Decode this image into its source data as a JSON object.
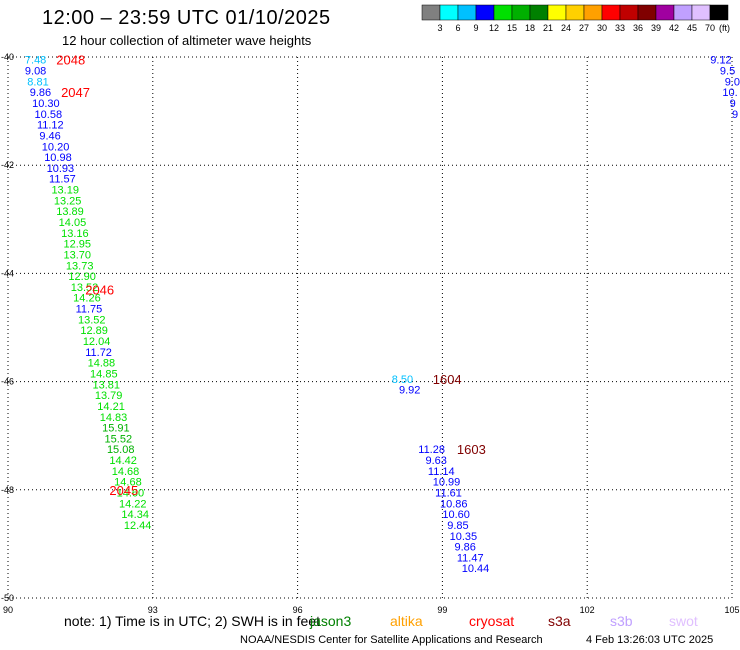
{
  "header": {
    "title": "12:00 – 23:59 UTC 01/10/2025",
    "subtitle": "12 hour collection of altimeter wave heights"
  },
  "legend": {
    "colors": [
      "#808080",
      "#00ffff",
      "#00c0ff",
      "#0000ff",
      "#00e000",
      "#00b000",
      "#008000",
      "#ffff00",
      "#ffd000",
      "#ffa000",
      "#ff0000",
      "#c00000",
      "#800000",
      "#a000a0",
      "#c0a0ff",
      "#e0c0ff",
      "#000000"
    ],
    "labels": [
      "3",
      "6",
      "9",
      "12",
      "15",
      "18",
      "21",
      "24",
      "27",
      "30",
      "33",
      "36",
      "39",
      "42",
      "45",
      "70"
    ],
    "unit": "(ft)"
  },
  "axes": {
    "lon_ticks": [
      "90",
      "93",
      "96",
      "99",
      "102",
      "105"
    ],
    "lat_ticks": [
      "-40",
      "-42",
      "-44",
      "-46",
      "-48",
      "-50"
    ]
  },
  "track_labels": [
    {
      "text": "2048",
      "lon": 91.0,
      "lat": -40.05,
      "color": "#ff0000"
    },
    {
      "text": "2047",
      "lon": 91.1,
      "lat": -40.65,
      "color": "#ff0000"
    },
    {
      "text": "2046",
      "lon": 91.6,
      "lat": -44.3,
      "color": "#ff0000"
    },
    {
      "text": "2045",
      "lon": 92.1,
      "lat": -48.0,
      "color": "#ff0000"
    },
    {
      "text": "1604",
      "lon": 98.8,
      "lat": -45.95,
      "color": "#800000"
    },
    {
      "text": "1603",
      "lon": 99.3,
      "lat": -47.25,
      "color": "#800000"
    }
  ],
  "observations": [
    {
      "text": "7.48",
      "lon": 90.35,
      "lat": -40.05,
      "color": "#00c0ff"
    },
    {
      "text": "9.08",
      "lon": 90.35,
      "lat": -40.25,
      "color": "#0000ff"
    },
    {
      "text": "8.81",
      "lon": 90.4,
      "lat": -40.45,
      "color": "#00c0ff"
    },
    {
      "text": "9.86",
      "lon": 90.45,
      "lat": -40.65,
      "color": "#0000ff"
    },
    {
      "text": "10.30",
      "lon": 90.5,
      "lat": -40.85,
      "color": "#0000ff"
    },
    {
      "text": "10.58",
      "lon": 90.55,
      "lat": -41.05,
      "color": "#0000ff"
    },
    {
      "text": "11.12",
      "lon": 90.6,
      "lat": -41.25,
      "color": "#0000ff"
    },
    {
      "text": "9.46",
      "lon": 90.65,
      "lat": -41.45,
      "color": "#0000ff"
    },
    {
      "text": "10.20",
      "lon": 90.7,
      "lat": -41.65,
      "color": "#0000ff"
    },
    {
      "text": "10.98",
      "lon": 90.75,
      "lat": -41.85,
      "color": "#0000ff"
    },
    {
      "text": "10.93",
      "lon": 90.8,
      "lat": -42.05,
      "color": "#0000ff"
    },
    {
      "text": "11.57",
      "lon": 90.85,
      "lat": -42.25,
      "color": "#0000ff"
    },
    {
      "text": "13.19",
      "lon": 90.9,
      "lat": -42.45,
      "color": "#00e000"
    },
    {
      "text": "13.25",
      "lon": 90.95,
      "lat": -42.65,
      "color": "#00e000"
    },
    {
      "text": "13.89",
      "lon": 91.0,
      "lat": -42.85,
      "color": "#00e000"
    },
    {
      "text": "14.05",
      "lon": 91.05,
      "lat": -43.05,
      "color": "#00e000"
    },
    {
      "text": "13.16",
      "lon": 91.1,
      "lat": -43.25,
      "color": "#00e000"
    },
    {
      "text": "12.95",
      "lon": 91.15,
      "lat": -43.45,
      "color": "#00e000"
    },
    {
      "text": "13.70",
      "lon": 91.15,
      "lat": -43.65,
      "color": "#00e000"
    },
    {
      "text": "13.73",
      "lon": 91.2,
      "lat": -43.85,
      "color": "#00e000"
    },
    {
      "text": "12.90",
      "lon": 91.25,
      "lat": -44.05,
      "color": "#00e000"
    },
    {
      "text": "13.52",
      "lon": 91.3,
      "lat": -44.25,
      "color": "#00e000"
    },
    {
      "text": "14.26",
      "lon": 91.35,
      "lat": -44.45,
      "color": "#00e000"
    },
    {
      "text": "11.75",
      "lon": 91.4,
      "lat": -44.65,
      "color": "#0000ff"
    },
    {
      "text": "13.52",
      "lon": 91.45,
      "lat": -44.85,
      "color": "#00e000"
    },
    {
      "text": "12.89",
      "lon": 91.5,
      "lat": -45.05,
      "color": "#00e000"
    },
    {
      "text": "12.04",
      "lon": 91.55,
      "lat": -45.25,
      "color": "#00e000"
    },
    {
      "text": "11.72",
      "lon": 91.6,
      "lat": -45.45,
      "color": "#0000ff"
    },
    {
      "text": "14.88",
      "lon": 91.65,
      "lat": -45.65,
      "color": "#00e000"
    },
    {
      "text": "14.85",
      "lon": 91.7,
      "lat": -45.85,
      "color": "#00e000"
    },
    {
      "text": "13.81",
      "lon": 91.75,
      "lat": -46.05,
      "color": "#00e000"
    },
    {
      "text": "13.79",
      "lon": 91.8,
      "lat": -46.25,
      "color": "#00e000"
    },
    {
      "text": "14.21",
      "lon": 91.85,
      "lat": -46.45,
      "color": "#00e000"
    },
    {
      "text": "14.83",
      "lon": 91.9,
      "lat": -46.65,
      "color": "#00e000"
    },
    {
      "text": "15.91",
      "lon": 91.95,
      "lat": -46.85,
      "color": "#00b000"
    },
    {
      "text": "15.52",
      "lon": 92.0,
      "lat": -47.05,
      "color": "#00b000"
    },
    {
      "text": "15.08",
      "lon": 92.05,
      "lat": -47.25,
      "color": "#00b000"
    },
    {
      "text": "14.42",
      "lon": 92.1,
      "lat": -47.45,
      "color": "#00e000"
    },
    {
      "text": "14.68",
      "lon": 92.15,
      "lat": -47.65,
      "color": "#00e000"
    },
    {
      "text": "14.68",
      "lon": 92.2,
      "lat": -47.85,
      "color": "#00e000"
    },
    {
      "text": "14.60",
      "lon": 92.25,
      "lat": -48.05,
      "color": "#00e000"
    },
    {
      "text": "14.22",
      "lon": 92.3,
      "lat": -48.25,
      "color": "#00e000"
    },
    {
      "text": "14.34",
      "lon": 92.35,
      "lat": -48.45,
      "color": "#00e000"
    },
    {
      "text": "12.44",
      "lon": 92.4,
      "lat": -48.65,
      "color": "#00e000"
    },
    {
      "text": "8.50",
      "lon": 97.95,
      "lat": -45.95,
      "color": "#00c0ff"
    },
    {
      "text": "9.92",
      "lon": 98.1,
      "lat": -46.15,
      "color": "#0000ff"
    },
    {
      "text": "11.28",
      "lon": 98.5,
      "lat": -47.25,
      "color": "#0000ff"
    },
    {
      "text": "9.63",
      "lon": 98.65,
      "lat": -47.45,
      "color": "#0000ff"
    },
    {
      "text": "11.14",
      "lon": 98.7,
      "lat": -47.65,
      "color": "#0000ff"
    },
    {
      "text": "10.99",
      "lon": 98.8,
      "lat": -47.85,
      "color": "#0000ff"
    },
    {
      "text": "11.61",
      "lon": 98.85,
      "lat": -48.05,
      "color": "#0000ff"
    },
    {
      "text": "10.86",
      "lon": 98.95,
      "lat": -48.25,
      "color": "#0000ff"
    },
    {
      "text": "10.60",
      "lon": 99.0,
      "lat": -48.45,
      "color": "#0000ff"
    },
    {
      "text": "9.85",
      "lon": 99.1,
      "lat": -48.65,
      "color": "#0000ff"
    },
    {
      "text": "10.35",
      "lon": 99.15,
      "lat": -48.85,
      "color": "#0000ff"
    },
    {
      "text": "9.86",
      "lon": 99.25,
      "lat": -49.05,
      "color": "#0000ff"
    },
    {
      "text": "11.47",
      "lon": 99.3,
      "lat": -49.25,
      "color": "#0000ff"
    },
    {
      "text": "10.44",
      "lon": 99.4,
      "lat": -49.45,
      "color": "#0000ff"
    },
    {
      "text": "9.12",
      "lon": 104.55,
      "lat": -40.05,
      "color": "#0000ff"
    },
    {
      "text": "9.5",
      "lon": 104.75,
      "lat": -40.25,
      "color": "#0000ff"
    },
    {
      "text": "9.0",
      "lon": 104.85,
      "lat": -40.45,
      "color": "#0000ff"
    },
    {
      "text": "10.",
      "lon": 104.8,
      "lat": -40.65,
      "color": "#0000ff"
    },
    {
      "text": "9",
      "lon": 104.95,
      "lat": -40.85,
      "color": "#0000ff"
    },
    {
      "text": "9",
      "lon": 105.0,
      "lat": -41.05,
      "color": "#0000ff"
    }
  ],
  "footer": {
    "note": "note:  1) Time is in UTC;  2) SWH is in feet",
    "satellites": [
      {
        "name": "jason3",
        "color": "#008000"
      },
      {
        "name": "altika",
        "color": "#ffa000"
      },
      {
        "name": "cryosat",
        "color": "#ff0000"
      },
      {
        "name": "s3a",
        "color": "#800000"
      },
      {
        "name": "s3b",
        "color": "#c0a0ff"
      },
      {
        "name": "swot",
        "color": "#e0c0ff"
      }
    ],
    "credit": "NOAA/NESDIS Center for Satellite Applications and Research",
    "timestamp": "4 Feb 13:26:03 UTC 2025"
  }
}
